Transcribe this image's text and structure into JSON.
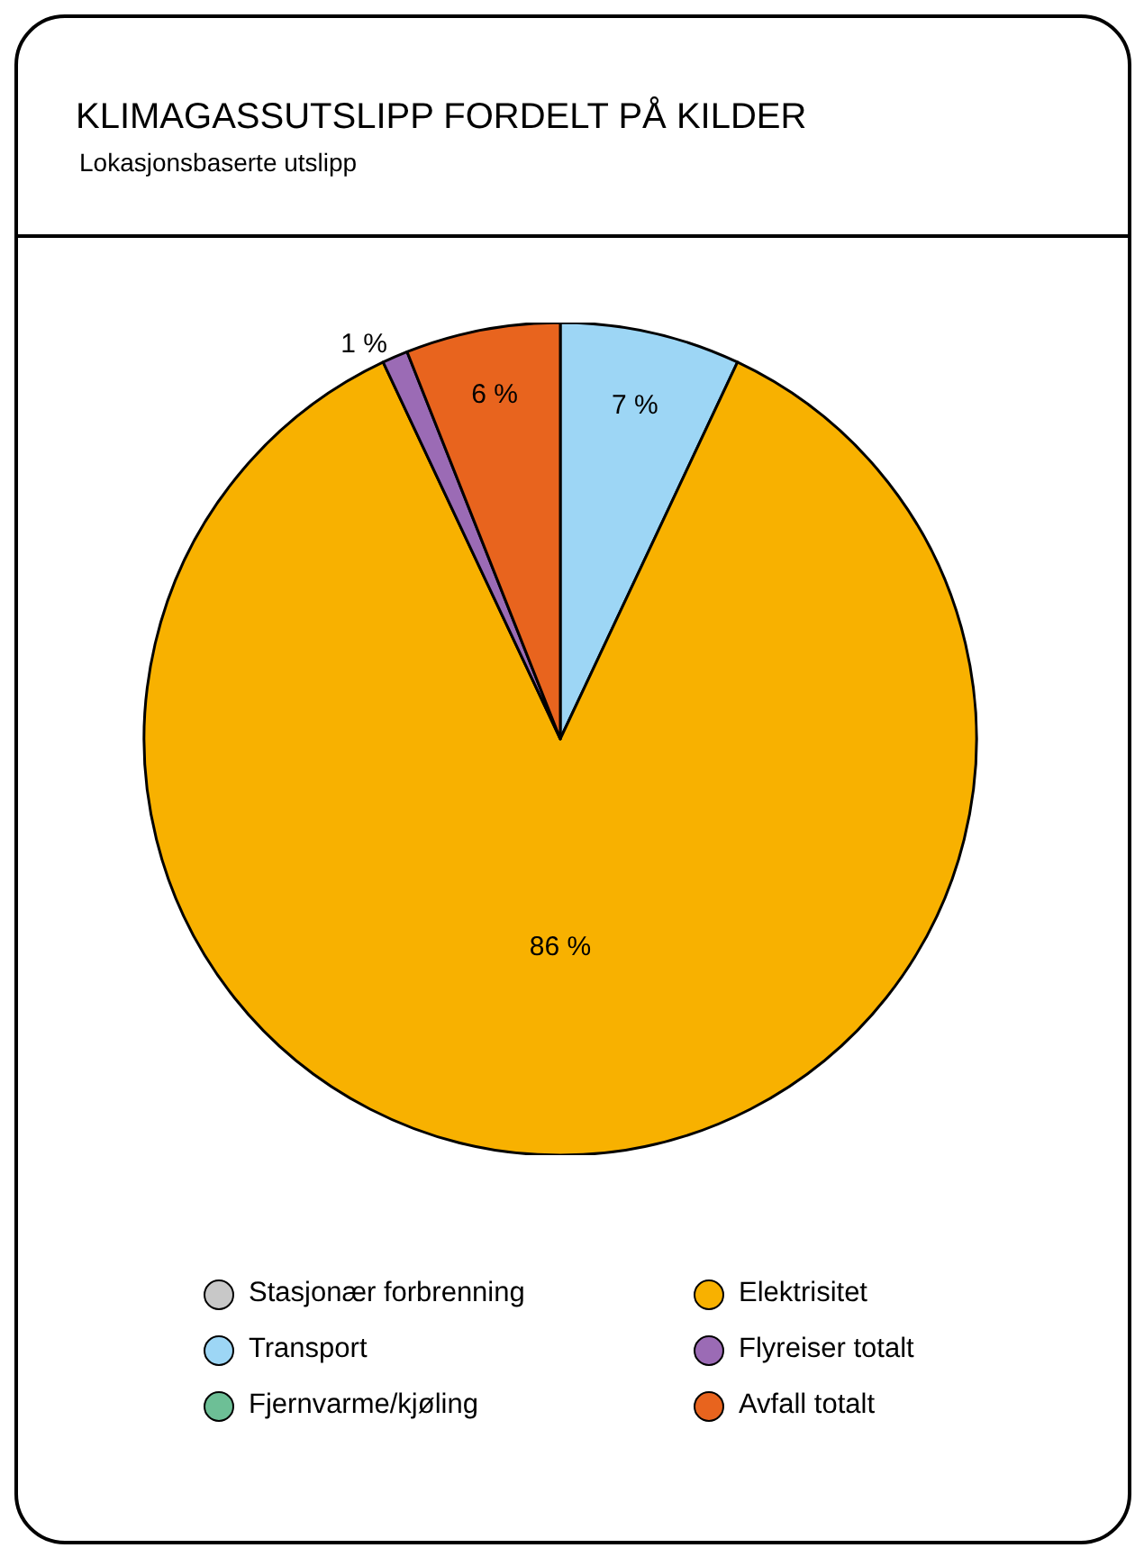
{
  "chart_data": {
    "type": "pie",
    "title": "KLIMAGASSUTSLIPP FORDELT PÅ KILDER",
    "subtitle": "Lokasjonsbaserte utslipp",
    "categories": [
      "Stasjonær forbrenning",
      "Transport",
      "Fjernvarme/kjøling",
      "Elektrisitet",
      "Flyreiser totalt",
      "Avfall totalt"
    ],
    "values": [
      0,
      7,
      0,
      86,
      1,
      6
    ],
    "colors": [
      "#c8c8c8",
      "#9dd6f5",
      "#6dbf96",
      "#f8b100",
      "#9b6bb5",
      "#e8641e"
    ],
    "value_labels": [
      null,
      "7 %",
      null,
      "86 %",
      "1 %",
      "6 %"
    ],
    "legend": "bottom"
  }
}
